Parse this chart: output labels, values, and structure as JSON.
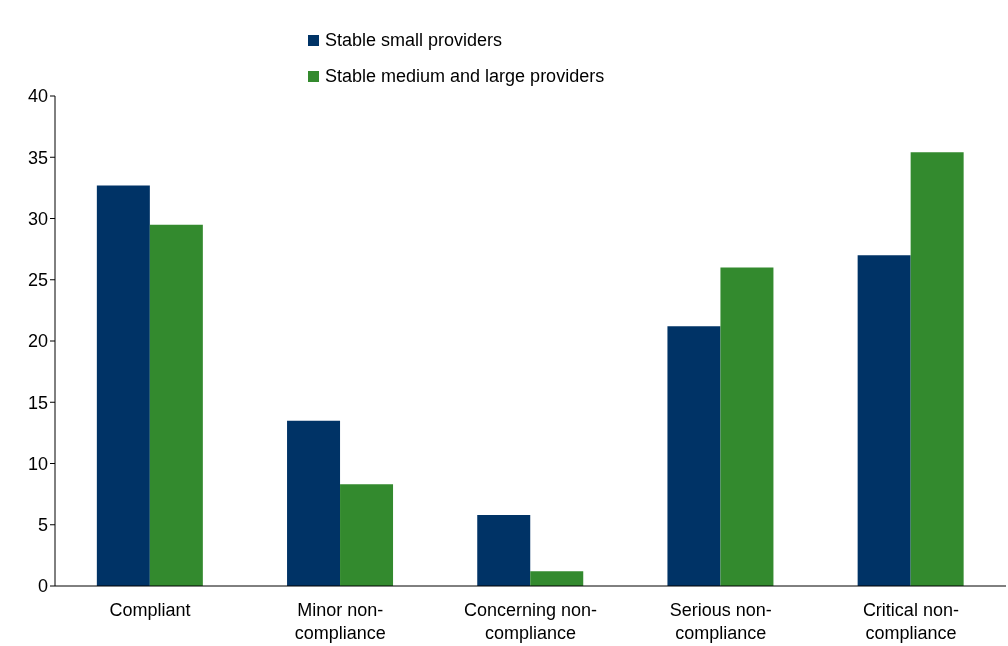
{
  "chart_data": {
    "type": "bar",
    "categories": [
      "Compliant",
      "Minor non-compliance",
      "Concerning non-compliance",
      "Serious non-compliance",
      "Critical non-compliance"
    ],
    "series": [
      {
        "name": "Stable small providers",
        "color": "#003366",
        "values": [
          32.7,
          13.5,
          5.8,
          21.2,
          27.0
        ]
      },
      {
        "name": "Stable medium and large providers",
        "color": "#338a2e",
        "values": [
          29.5,
          8.3,
          1.2,
          26.0,
          35.4
        ]
      }
    ],
    "ylim": [
      0,
      40
    ],
    "yticks": [
      0,
      5,
      10,
      15,
      20,
      25,
      30,
      35,
      40
    ],
    "grid": false,
    "legend": "top"
  }
}
